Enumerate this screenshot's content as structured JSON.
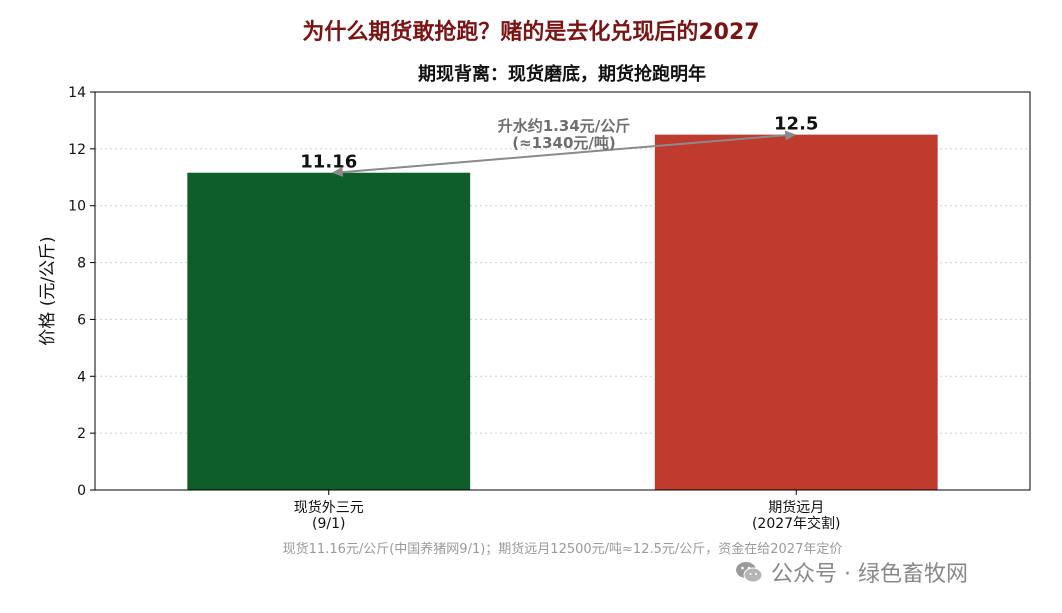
{
  "header": {
    "title": "为什么期货敢抢跑？赌的是去化兑现后的2027"
  },
  "chart_data": {
    "type": "bar",
    "title": "期现背离：现货磨底，期货抢跑明年",
    "ylabel": "价格 (元/公斤)",
    "ylim": [
      0,
      14
    ],
    "yticks": [
      0,
      2,
      4,
      6,
      8,
      10,
      12,
      14
    ],
    "grid": true,
    "categories": [
      {
        "line1": "现货外三元",
        "line2": "(9/1)"
      },
      {
        "line1": "期货远月",
        "line2": "(2027年交割)"
      }
    ],
    "values": [
      11.16,
      12.5
    ],
    "value_labels": [
      "11.16",
      "12.5"
    ],
    "colors": [
      "#0d5e29",
      "#be3b2e"
    ],
    "annotation": {
      "line1": "升水约1.34元/公斤",
      "line2": "(≈1340元/吨)",
      "color": "#8a8a8a"
    }
  },
  "footnote": "现货11.16元/公斤(中国养猪网9/1)；期货远月12500元/吨≈12.5元/公斤，资金在给2027年定价",
  "watermark": {
    "icon": "wechat-icon",
    "text": "公众号 · 绿色畜牧网"
  }
}
